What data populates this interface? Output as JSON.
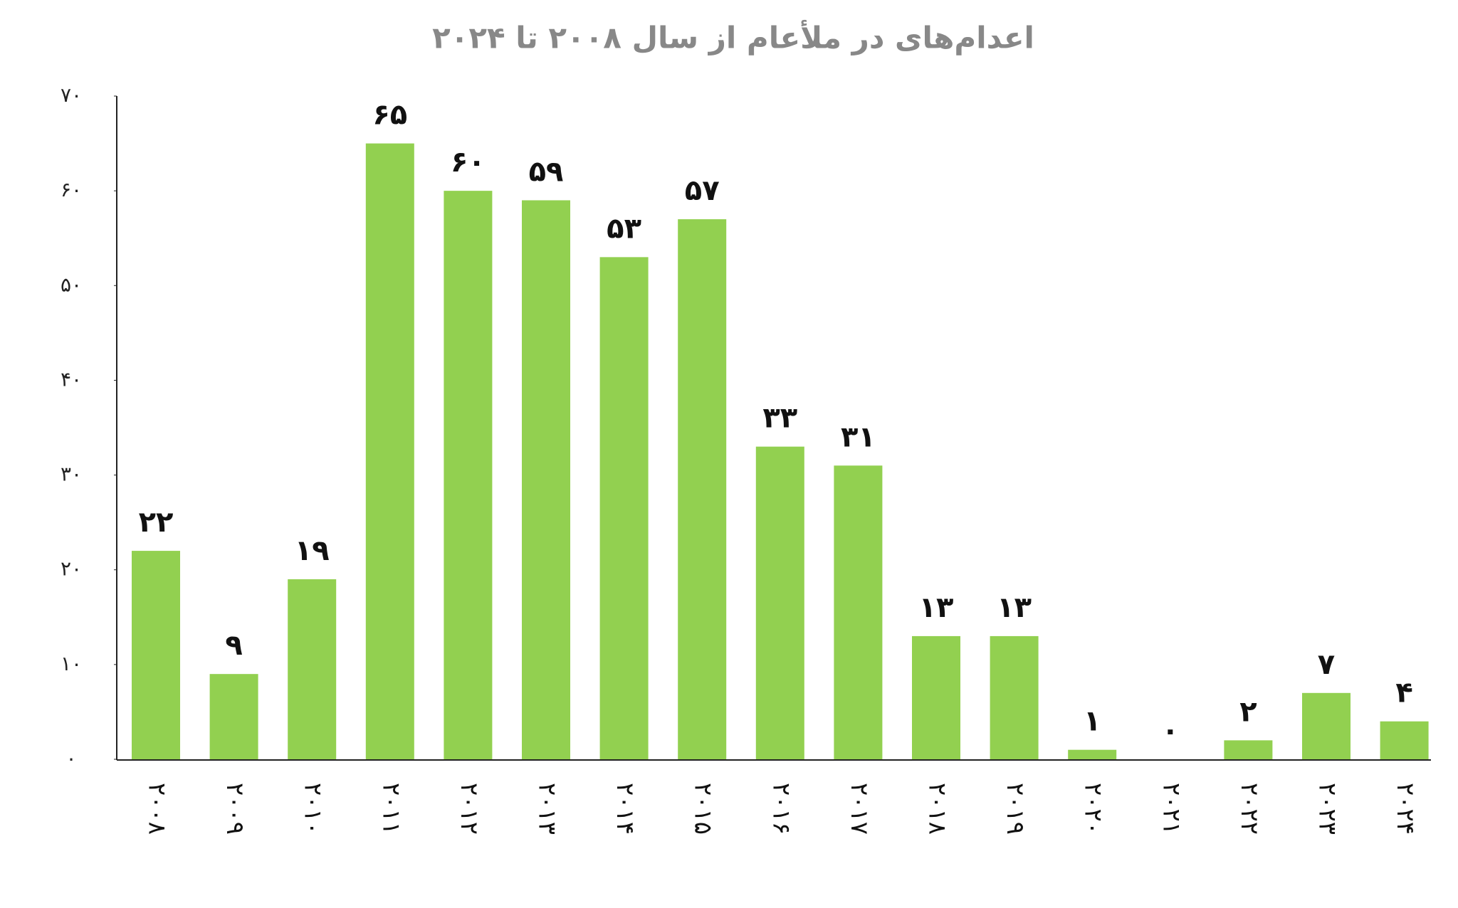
{
  "chart_data": {
    "type": "bar",
    "title": "اعدام‌های در ملأعام از سال ۲۰۰۸ تا ۲۰۲۴",
    "categories": [
      "۲۰۰۸",
      "۲۰۰۹",
      "۲۰۱۰",
      "۲۰۱۱",
      "۲۰۱۲",
      "۲۰۱۳",
      "۲۰۱۴",
      "۲۰۱۵",
      "۲۰۱۶",
      "۲۰۱۷",
      "۲۰۱۸",
      "۲۰۱۹",
      "۲۰۲۰",
      "۲۰۲۱",
      "۲۰۲۲",
      "۲۰۲۳",
      "۲۰۲۴"
    ],
    "values": [
      22,
      9,
      19,
      65,
      60,
      59,
      53,
      57,
      33,
      31,
      13,
      13,
      1,
      0,
      2,
      7,
      4
    ],
    "value_labels": [
      "۲۲",
      "۹",
      "۱۹",
      "۶۵",
      "۶۰",
      "۵۹",
      "۵۳",
      "۵۷",
      "۳۳",
      "۳۱",
      "۱۳",
      "۱۳",
      "۱",
      "۰",
      "۲",
      "۷",
      "۴"
    ],
    "color": "#92d050",
    "ylim": [
      0,
      70
    ],
    "yticks": [
      {
        "value": 0,
        "label": "۰"
      },
      {
        "value": 10,
        "label": "۱۰"
      },
      {
        "value": 20,
        "label": "۲۰"
      },
      {
        "value": 30,
        "label": "۳۰"
      },
      {
        "value": 40,
        "label": "۴۰"
      },
      {
        "value": 50,
        "label": "۵۰"
      },
      {
        "value": 60,
        "label": "۶۰"
      },
      {
        "value": 70,
        "label": "۷۰"
      }
    ],
    "grid": false
  }
}
